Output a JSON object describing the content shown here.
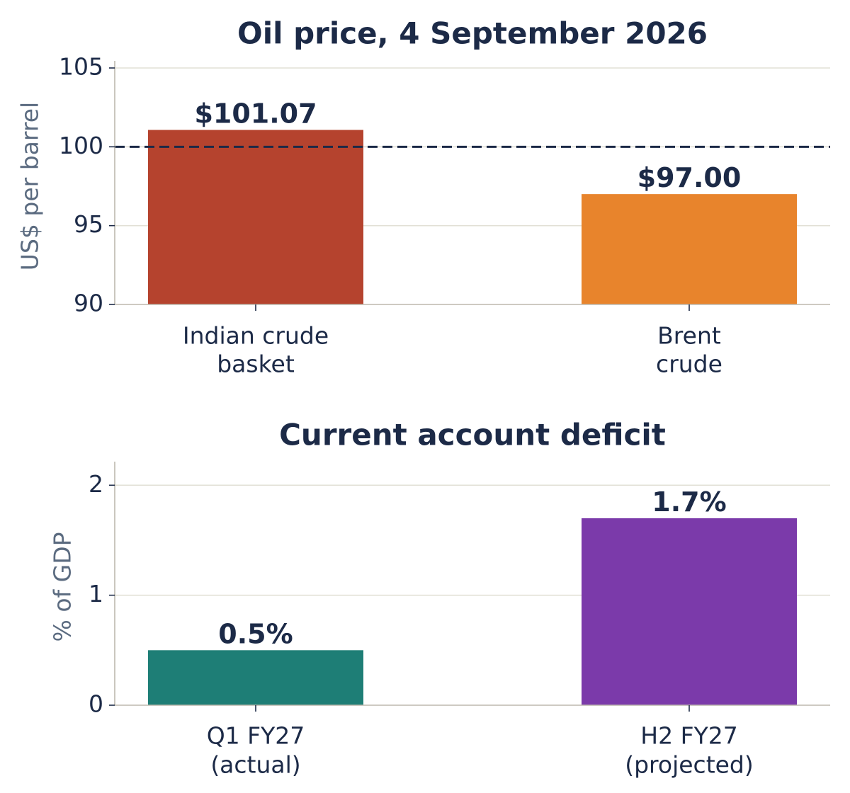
{
  "colors": {
    "text": "#1c2a47",
    "axis_label": "#5b6b80",
    "grid": "#e2e0d6",
    "spine": "#bdb9ad",
    "reference_line": "#1c2a47"
  },
  "chart_data": [
    {
      "type": "bar",
      "title": "Oil price, 4 September 2026",
      "ylabel": "US$ per barrel",
      "xlabel": "",
      "categories": [
        [
          "Indian crude",
          "basket"
        ],
        [
          "Brent",
          "crude"
        ]
      ],
      "values": [
        101.07,
        97.0
      ],
      "value_labels": [
        "$101.07",
        "$97.00"
      ],
      "bar_colors": [
        "#b5432e",
        "#e8842c"
      ],
      "ylim": [
        90,
        105
      ],
      "yticks": [
        90,
        95,
        100,
        105
      ],
      "ytick_labels": [
        "90",
        "95",
        "100",
        "105"
      ],
      "reference_line": 100,
      "grid": true,
      "legend": "none"
    },
    {
      "type": "bar",
      "title": "Current account deficit",
      "ylabel": "% of GDP",
      "xlabel": "",
      "categories": [
        [
          "Q1 FY27",
          "(actual)"
        ],
        [
          "H2 FY27",
          "(projected)"
        ]
      ],
      "values": [
        0.5,
        1.7
      ],
      "value_labels": [
        "0.5%",
        "1.7%"
      ],
      "bar_colors": [
        "#1e7e76",
        "#7b3aaa"
      ],
      "ylim": [
        0,
        2.15
      ],
      "yticks": [
        0,
        1,
        2
      ],
      "ytick_labels": [
        "0",
        "1",
        "2"
      ],
      "grid": true,
      "legend": "none"
    }
  ]
}
